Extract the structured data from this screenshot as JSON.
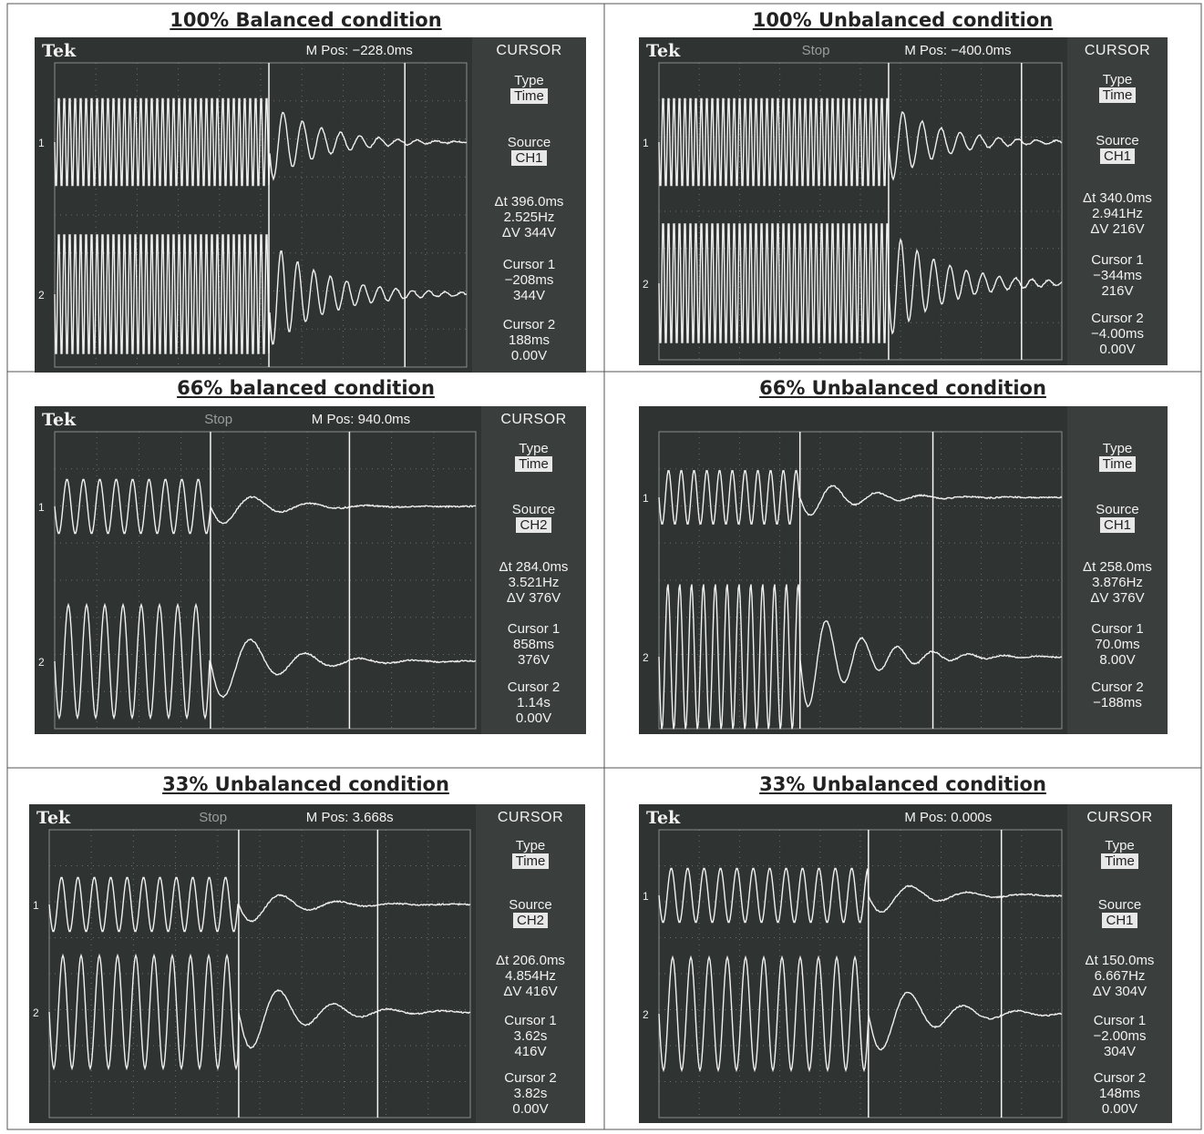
{
  "panels": [
    {
      "title": "100% Balanced condition",
      "brand": "Tek",
      "status": "",
      "mpos": "M Pos: −228.0ms",
      "menu": "CURSOR",
      "type_label": "Type",
      "type_value": "Time",
      "source_label": "Source",
      "source_value": "CH1",
      "delta_t": "Δt 396.0ms",
      "freq": "2.525Hz",
      "delta_v": "ΔV 344V",
      "cursor1_label": "Cursor 1",
      "cursor1_time": "−208ms",
      "cursor1_volt": "344V",
      "cursor2_label": "Cursor 2",
      "cursor2_time": "188ms",
      "cursor2_volt": "0.00V"
    },
    {
      "title": "100% Unbalanced condition",
      "brand": "Tek",
      "status": "Stop",
      "mpos": "M Pos: −400.0ms",
      "menu": "CURSOR",
      "type_label": "Type",
      "type_value": "Time",
      "source_label": "Source",
      "source_value": "CH1",
      "delta_t": "Δt 340.0ms",
      "freq": "2.941Hz",
      "delta_v": "ΔV 216V",
      "cursor1_label": "Cursor 1",
      "cursor1_time": "−344ms",
      "cursor1_volt": "216V",
      "cursor2_label": "Cursor 2",
      "cursor2_time": "−4.00ms",
      "cursor2_volt": "0.00V"
    },
    {
      "title": "66% balanced condition",
      "brand": "Tek",
      "status": "Stop",
      "mpos": "M Pos: 940.0ms",
      "menu": "CURSOR",
      "type_label": "Type",
      "type_value": "Time",
      "source_label": "Source",
      "source_value": "CH2",
      "delta_t": "Δt 284.0ms",
      "freq": "3.521Hz",
      "delta_v": "ΔV 376V",
      "cursor1_label": "Cursor 1",
      "cursor1_time": "858ms",
      "cursor1_volt": "376V",
      "cursor2_label": "Cursor 2",
      "cursor2_time": "1.14s",
      "cursor2_volt": "0.00V"
    },
    {
      "title": "66% Unbalanced condition",
      "brand": "",
      "status": "",
      "mpos": "",
      "menu": "",
      "type_label": "Type",
      "type_value": "Time",
      "source_label": "Source",
      "source_value": "CH1",
      "delta_t": "Δt 258.0ms",
      "freq": "3.876Hz",
      "delta_v": "ΔV 376V",
      "cursor1_label": "Cursor 1",
      "cursor1_time": "70.0ms",
      "cursor1_volt": "8.00V",
      "cursor2_label": "Cursor 2",
      "cursor2_time": "−188ms",
      "cursor2_volt": ""
    },
    {
      "title": "33% Unbalanced condition",
      "brand": "Tek",
      "status": "Stop",
      "mpos": "M Pos: 3.668s",
      "menu": "CURSOR",
      "type_label": "Type",
      "type_value": "Time",
      "source_label": "Source",
      "source_value": "CH2",
      "delta_t": "Δt 206.0ms",
      "freq": "4.854Hz",
      "delta_v": "ΔV 416V",
      "cursor1_label": "Cursor 1",
      "cursor1_time": "3.62s",
      "cursor1_volt": "416V",
      "cursor2_label": "Cursor 2",
      "cursor2_time": "3.82s",
      "cursor2_volt": "0.00V"
    },
    {
      "title": "33% Unbalanced condition",
      "brand": "Tek",
      "status": "",
      "mpos": "M Pos: 0.000s",
      "menu": "CURSOR",
      "type_label": "Type",
      "type_value": "Time",
      "source_label": "Source",
      "source_value": "CH1",
      "delta_t": "Δt 150.0ms",
      "freq": "6.667Hz",
      "delta_v": "ΔV 304V",
      "cursor1_label": "Cursor 1",
      "cursor1_time": "−2.00ms",
      "cursor1_volt": "304V",
      "cursor2_label": "Cursor 2",
      "cursor2_time": "148ms",
      "cursor2_volt": "0.00V"
    }
  ],
  "ch1_marker": "1",
  "ch2_marker": "2"
}
